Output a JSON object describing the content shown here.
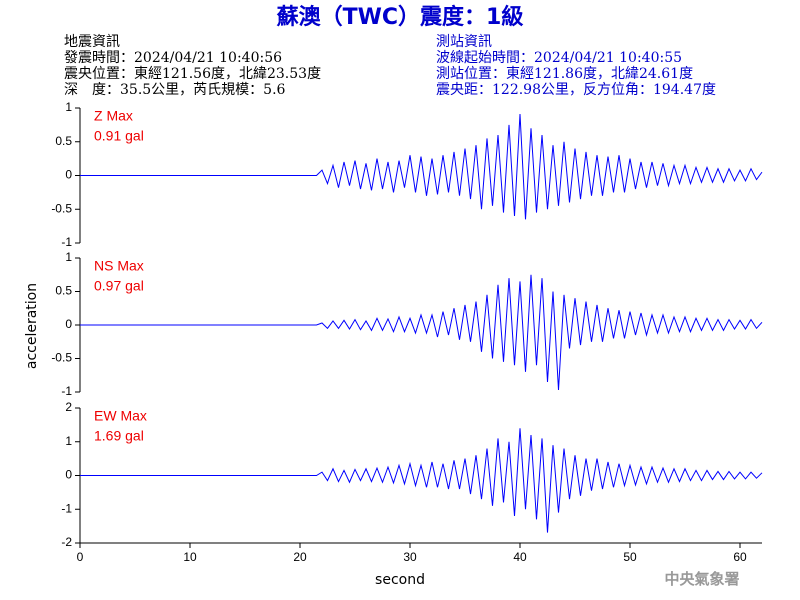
{
  "title": "蘇澳（TWC）震度：1級",
  "event_info": [
    "地震資訊",
    "發震時間：2024/04/21 10:40:56",
    "震央位置：東經121.56度，北緯23.53度",
    "深　度：35.5公里，芮氏規模：5.6"
  ],
  "station_info": [
    "測站資訊",
    "波線起始時間：2024/04/21 10:40:55",
    "測站位置：東經121.86度，北緯24.61度",
    "震央距：122.98公里，反方位角：194.47度"
  ],
  "y_label": "acceleration",
  "x_label": "second",
  "agency": "中央氣象署",
  "chart_data": [
    {
      "type": "line",
      "annotations": [
        "Z Max",
        "0.91 gal"
      ],
      "x": [
        0,
        21.5,
        22,
        22.5,
        23,
        23.5,
        24,
        24.5,
        25,
        25.5,
        26,
        26.5,
        27,
        27.5,
        28,
        28.5,
        29,
        29.5,
        30,
        30.5,
        31,
        31.5,
        32,
        32.5,
        33,
        33.5,
        34,
        34.5,
        35,
        35.5,
        36,
        36.5,
        37,
        37.5,
        38,
        38.5,
        39,
        39.5,
        40,
        40.5,
        41,
        41.5,
        42,
        42.5,
        43,
        43.5,
        44,
        44.5,
        45,
        45.5,
        46,
        46.5,
        47,
        47.5,
        48,
        48.5,
        49,
        49.5,
        50,
        50.5,
        51,
        51.5,
        52,
        52.5,
        53,
        53.5,
        54,
        54.5,
        55,
        55.5,
        56,
        56.5,
        57,
        57.5,
        58,
        58.5,
        59,
        59.5,
        60,
        60.5,
        61,
        61.5,
        62
      ],
      "series": [
        {
          "color": "#0000ff",
          "values": [
            0,
            0,
            0.08,
            -0.12,
            0.15,
            -0.18,
            0.2,
            -0.15,
            0.22,
            -0.2,
            0.18,
            -0.22,
            0.25,
            -0.2,
            0.2,
            -0.25,
            0.22,
            -0.18,
            0.3,
            -0.25,
            0.28,
            -0.3,
            0.25,
            -0.28,
            0.3,
            -0.25,
            0.35,
            -0.3,
            0.4,
            -0.35,
            0.45,
            -0.5,
            0.55,
            -0.45,
            0.6,
            -0.55,
            0.75,
            -0.6,
            0.91,
            -0.65,
            0.7,
            -0.55,
            0.6,
            -0.5,
            0.45,
            -0.45,
            0.5,
            -0.4,
            0.4,
            -0.35,
            0.35,
            -0.3,
            0.3,
            -0.3,
            0.28,
            -0.25,
            0.3,
            -0.25,
            0.25,
            -0.2,
            0.2,
            -0.18,
            0.2,
            -0.15,
            0.18,
            -0.15,
            0.15,
            -0.12,
            0.15,
            -0.12,
            0.12,
            -0.1,
            0.12,
            -0.1,
            0.1,
            -0.1,
            0.1,
            -0.08,
            0.08,
            -0.08,
            0.1,
            -0.06,
            0.05
          ]
        }
      ],
      "xlim": [
        0,
        62
      ],
      "ylim": [
        -1,
        1
      ],
      "yticks": [
        -1,
        -0.5,
        0,
        0.5,
        1
      ]
    },
    {
      "type": "line",
      "annotations": [
        "NS Max",
        "0.97 gal"
      ],
      "x": [
        0,
        21.5,
        22,
        22.5,
        23,
        23.5,
        24,
        24.5,
        25,
        25.5,
        26,
        26.5,
        27,
        27.5,
        28,
        28.5,
        29,
        29.5,
        30,
        30.5,
        31,
        31.5,
        32,
        32.5,
        33,
        33.5,
        34,
        34.5,
        35,
        35.5,
        36,
        36.5,
        37,
        37.5,
        38,
        38.5,
        39,
        39.5,
        40,
        40.5,
        41,
        41.5,
        42,
        42.5,
        43,
        43.5,
        44,
        44.5,
        45,
        45.5,
        46,
        46.5,
        47,
        47.5,
        48,
        48.5,
        49,
        49.5,
        50,
        50.5,
        51,
        51.5,
        52,
        52.5,
        53,
        53.5,
        54,
        54.5,
        55,
        55.5,
        56,
        56.5,
        57,
        57.5,
        58,
        58.5,
        59,
        59.5,
        60,
        60.5,
        61,
        61.5,
        62
      ],
      "series": [
        {
          "color": "#0000ff",
          "values": [
            0,
            0,
            0.03,
            -0.05,
            0.06,
            -0.05,
            0.07,
            -0.06,
            0.08,
            -0.07,
            0.06,
            -0.08,
            0.1,
            -0.08,
            0.09,
            -0.1,
            0.12,
            -0.1,
            0.1,
            -0.12,
            0.15,
            -0.12,
            0.15,
            -0.18,
            0.2,
            -0.15,
            0.25,
            -0.22,
            0.3,
            -0.25,
            0.35,
            -0.4,
            0.45,
            -0.5,
            0.6,
            -0.55,
            0.7,
            -0.6,
            0.65,
            -0.7,
            0.75,
            -0.6,
            0.7,
            -0.85,
            0.5,
            -0.97,
            0.45,
            -0.35,
            0.4,
            -0.3,
            0.35,
            -0.25,
            0.3,
            -0.25,
            0.25,
            -0.2,
            0.22,
            -0.2,
            0.2,
            -0.15,
            0.18,
            -0.15,
            0.15,
            -0.12,
            0.15,
            -0.12,
            0.12,
            -0.1,
            0.12,
            -0.1,
            0.1,
            -0.08,
            0.1,
            -0.08,
            0.08,
            -0.08,
            0.08,
            -0.06,
            0.07,
            -0.06,
            0.08,
            -0.05,
            0.04
          ]
        }
      ],
      "xlim": [
        0,
        62
      ],
      "ylim": [
        -1,
        1
      ],
      "yticks": [
        -1,
        -0.5,
        0,
        0.5,
        1
      ]
    },
    {
      "type": "line",
      "annotations": [
        "EW Max",
        "1.69 gal"
      ],
      "x": [
        0,
        21.5,
        22,
        22.5,
        23,
        23.5,
        24,
        24.5,
        25,
        25.5,
        26,
        26.5,
        27,
        27.5,
        28,
        28.5,
        29,
        29.5,
        30,
        30.5,
        31,
        31.5,
        32,
        32.5,
        33,
        33.5,
        34,
        34.5,
        35,
        35.5,
        36,
        36.5,
        37,
        37.5,
        38,
        38.5,
        39,
        39.5,
        40,
        40.5,
        41,
        41.5,
        42,
        42.5,
        43,
        43.5,
        44,
        44.5,
        45,
        45.5,
        46,
        46.5,
        47,
        47.5,
        48,
        48.5,
        49,
        49.5,
        50,
        50.5,
        51,
        51.5,
        52,
        52.5,
        53,
        53.5,
        54,
        54.5,
        55,
        55.5,
        56,
        56.5,
        57,
        57.5,
        58,
        58.5,
        59,
        59.5,
        60,
        60.5,
        61,
        61.5,
        62
      ],
      "series": [
        {
          "color": "#0000ff",
          "values": [
            0,
            0,
            0.1,
            -0.15,
            0.2,
            -0.18,
            0.15,
            -0.2,
            0.18,
            -0.15,
            0.2,
            -0.18,
            0.22,
            -0.2,
            0.25,
            -0.22,
            0.3,
            -0.25,
            0.35,
            -0.3,
            0.3,
            -0.35,
            0.4,
            -0.35,
            0.35,
            -0.4,
            0.45,
            -0.4,
            0.5,
            -0.55,
            0.6,
            -0.7,
            0.8,
            -0.9,
            1.1,
            -0.8,
            1.0,
            -1.2,
            1.4,
            -1.0,
            1.2,
            -1.3,
            1.1,
            -1.69,
            0.9,
            -1.1,
            0.8,
            -0.7,
            0.6,
            -0.6,
            0.5,
            -0.45,
            0.5,
            -0.4,
            0.4,
            -0.35,
            0.35,
            -0.3,
            0.3,
            -0.28,
            0.25,
            -0.25,
            0.25,
            -0.2,
            0.22,
            -0.2,
            0.2,
            -0.18,
            0.2,
            -0.15,
            0.15,
            -0.15,
            0.15,
            -0.12,
            0.12,
            -0.12,
            0.12,
            -0.1,
            0.1,
            -0.1,
            0.1,
            -0.08,
            0.08
          ]
        }
      ],
      "xlim": [
        0,
        62
      ],
      "ylim": [
        -2,
        2
      ],
      "yticks": [
        -2,
        -1,
        0,
        1,
        2
      ],
      "xticks": [
        0,
        10,
        20,
        30,
        40,
        50,
        60
      ]
    }
  ]
}
